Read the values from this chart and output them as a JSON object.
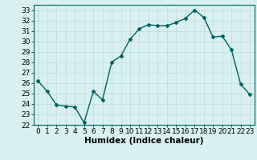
{
  "x": [
    0,
    1,
    2,
    3,
    4,
    5,
    6,
    7,
    8,
    9,
    10,
    11,
    12,
    13,
    14,
    15,
    16,
    17,
    18,
    19,
    20,
    21,
    22,
    23
  ],
  "y": [
    26.2,
    25.2,
    23.9,
    23.8,
    23.7,
    22.2,
    25.2,
    24.4,
    28.0,
    28.6,
    30.2,
    31.2,
    31.6,
    31.5,
    31.5,
    31.8,
    32.2,
    33.0,
    32.3,
    30.4,
    30.5,
    29.2,
    25.9,
    24.9
  ],
  "line_color": "#006060",
  "marker": "D",
  "markersize": 2.0,
  "linewidth": 1.0,
  "xlabel": "Humidex (Indice chaleur)",
  "xlim": [
    -0.5,
    23.5
  ],
  "ylim": [
    22,
    33.5
  ],
  "yticks": [
    22,
    23,
    24,
    25,
    26,
    27,
    28,
    29,
    30,
    31,
    32,
    33
  ],
  "xticks": [
    0,
    1,
    2,
    3,
    4,
    5,
    6,
    7,
    8,
    9,
    10,
    11,
    12,
    13,
    14,
    15,
    16,
    17,
    18,
    19,
    20,
    21,
    22,
    23
  ],
  "background_color": "#d8f0f0",
  "grid_color": "#c0d8d8",
  "tick_labelsize": 6.5,
  "xlabel_fontsize": 7.5
}
